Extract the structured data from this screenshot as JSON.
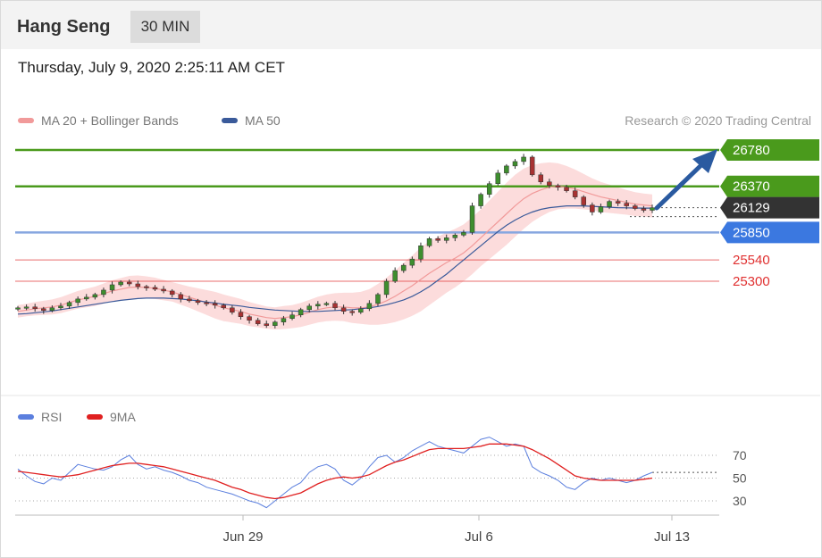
{
  "header": {
    "instrument": "Hang Seng",
    "timeframe": "30 MIN"
  },
  "datetime": "Thursday, July 9, 2020 2:25:11 AM CET",
  "credit": "Research © 2020 Trading Central",
  "legend": [
    {
      "label": "MA 20 + Bollinger Bands",
      "color": "#f19a9a"
    },
    {
      "label": "MA 50",
      "color": "#3a5a9a"
    }
  ],
  "rsi_legend": [
    {
      "label": "RSI",
      "color": "#5b7fde"
    },
    {
      "label": "9MA",
      "color": "#e02020"
    }
  ],
  "colors": {
    "green": "#4a9a1c",
    "blue": "#3b78e0",
    "red": "#e03030",
    "dark": "#333333",
    "arrow": "#2a5aa0"
  },
  "chart_data": [
    {
      "type": "candlestick",
      "ylim": [
        24800,
        26900
      ],
      "x_labels": [
        "Jun 29",
        "Jul 6",
        "Jul 13"
      ],
      "levels": [
        {
          "value": 26780,
          "label": "26780",
          "kind": "resistance"
        },
        {
          "value": 26370,
          "label": "26370",
          "kind": "resistance"
        },
        {
          "value": 26129,
          "label": "26129",
          "kind": "last"
        },
        {
          "value": 25850,
          "label": "25850",
          "kind": "pivot"
        },
        {
          "value": 25540,
          "label": "25540",
          "kind": "support"
        },
        {
          "value": 25300,
          "label": "25300",
          "kind": "support"
        }
      ],
      "close": [
        25000,
        25010,
        24990,
        24970,
        25000,
        25020,
        25060,
        25100,
        25120,
        25150,
        25200,
        25260,
        25290,
        25270,
        25240,
        25230,
        25210,
        25190,
        25150,
        25100,
        25080,
        25060,
        25050,
        25030,
        25000,
        24950,
        24900,
        24860,
        24820,
        24800,
        24840,
        24880,
        24920,
        24980,
        25020,
        25040,
        25050,
        25000,
        24960,
        24950,
        24990,
        25050,
        25150,
        25300,
        25420,
        25480,
        25550,
        25700,
        25780,
        25760,
        25790,
        25820,
        25850,
        26150,
        26280,
        26400,
        26520,
        26600,
        26650,
        26700,
        26500,
        26420,
        26380,
        26360,
        26320,
        26250,
        26160,
        26080,
        26140,
        26200,
        26180,
        26150,
        26120,
        26100,
        26129
      ],
      "ma20": [
        24960,
        24975,
        24990,
        25000,
        25010,
        25030,
        25060,
        25090,
        25110,
        25130,
        25160,
        25190,
        25210,
        25230,
        25235,
        25230,
        25220,
        25200,
        25180,
        25150,
        25120,
        25090,
        25060,
        25030,
        25000,
        24980,
        24960,
        24930,
        24910,
        24890,
        24880,
        24890,
        24900,
        24920,
        24950,
        24980,
        25000,
        25010,
        25010,
        25000,
        25000,
        25010,
        25040,
        25080,
        25130,
        25190,
        25250,
        25320,
        25390,
        25450,
        25510,
        25560,
        25620,
        25700,
        25790,
        25880,
        25970,
        26060,
        26150,
        26230,
        26290,
        26330,
        26360,
        26370,
        26360,
        26340,
        26310,
        26280,
        26250,
        26230,
        26210,
        26190,
        26170,
        26160,
        26150
      ],
      "ma50": [
        24930,
        24935,
        24945,
        24955,
        24965,
        24980,
        24995,
        25010,
        25025,
        25040,
        25055,
        25070,
        25085,
        25095,
        25105,
        25110,
        25110,
        25110,
        25105,
        25100,
        25090,
        25080,
        25065,
        25055,
        25040,
        25030,
        25020,
        25005,
        24995,
        24985,
        24975,
        24970,
        24965,
        24960,
        24960,
        24960,
        24965,
        24970,
        24975,
        24980,
        24990,
        25000,
        25015,
        25035,
        25060,
        25090,
        25130,
        25180,
        25240,
        25310,
        25380,
        25460,
        25540,
        25620,
        25700,
        25780,
        25860,
        25930,
        25990,
        26040,
        26080,
        26110,
        26130,
        26140,
        26150,
        26150,
        26150,
        26145,
        26140,
        26135,
        26130,
        26128,
        26126,
        26125,
        26125
      ],
      "bb_width": [
        70,
        70,
        75,
        80,
        85,
        90,
        95,
        100,
        105,
        110,
        115,
        120,
        125,
        130,
        130,
        125,
        120,
        115,
        110,
        115,
        120,
        130,
        140,
        150,
        150,
        145,
        140,
        135,
        130,
        125,
        125,
        130,
        130,
        135,
        140,
        145,
        150,
        155,
        160,
        170,
        180,
        200,
        230,
        260,
        290,
        320,
        340,
        360,
        360,
        350,
        340,
        330,
        320,
        320,
        320,
        330,
        340,
        350,
        350,
        340,
        320,
        300,
        280,
        260,
        240,
        220,
        200,
        180,
        170,
        160,
        150,
        140,
        135,
        130,
        130
      ]
    },
    {
      "type": "line",
      "ylim": [
        10,
        90
      ],
      "yticks": [
        70,
        50,
        30
      ],
      "series": [
        {
          "name": "RSI",
          "values": [
            58,
            52,
            47,
            45,
            50,
            48,
            55,
            62,
            60,
            58,
            57,
            60,
            66,
            70,
            62,
            58,
            60,
            57,
            55,
            52,
            48,
            46,
            42,
            40,
            38,
            36,
            33,
            30,
            28,
            24,
            30,
            36,
            42,
            46,
            55,
            60,
            62,
            58,
            48,
            44,
            50,
            60,
            68,
            70,
            64,
            68,
            74,
            78,
            82,
            78,
            76,
            74,
            72,
            78,
            84,
            86,
            82,
            78,
            80,
            78,
            60,
            55,
            52,
            48,
            42,
            40,
            46,
            50,
            48,
            50,
            48,
            46,
            48,
            52,
            55
          ]
        },
        {
          "name": "9MA",
          "values": [
            56,
            55,
            54,
            53,
            52,
            51,
            52,
            53,
            55,
            57,
            59,
            61,
            62,
            63,
            63,
            62,
            61,
            60,
            58,
            56,
            54,
            52,
            50,
            48,
            45,
            42,
            40,
            37,
            35,
            33,
            32,
            33,
            35,
            37,
            41,
            45,
            48,
            50,
            51,
            50,
            51,
            53,
            57,
            61,
            64,
            66,
            69,
            72,
            75,
            76,
            76,
            76,
            76,
            77,
            78,
            80,
            80,
            80,
            79,
            78,
            75,
            71,
            67,
            62,
            57,
            52,
            50,
            49,
            48,
            48,
            48,
            48,
            48,
            49,
            50
          ]
        }
      ]
    }
  ]
}
